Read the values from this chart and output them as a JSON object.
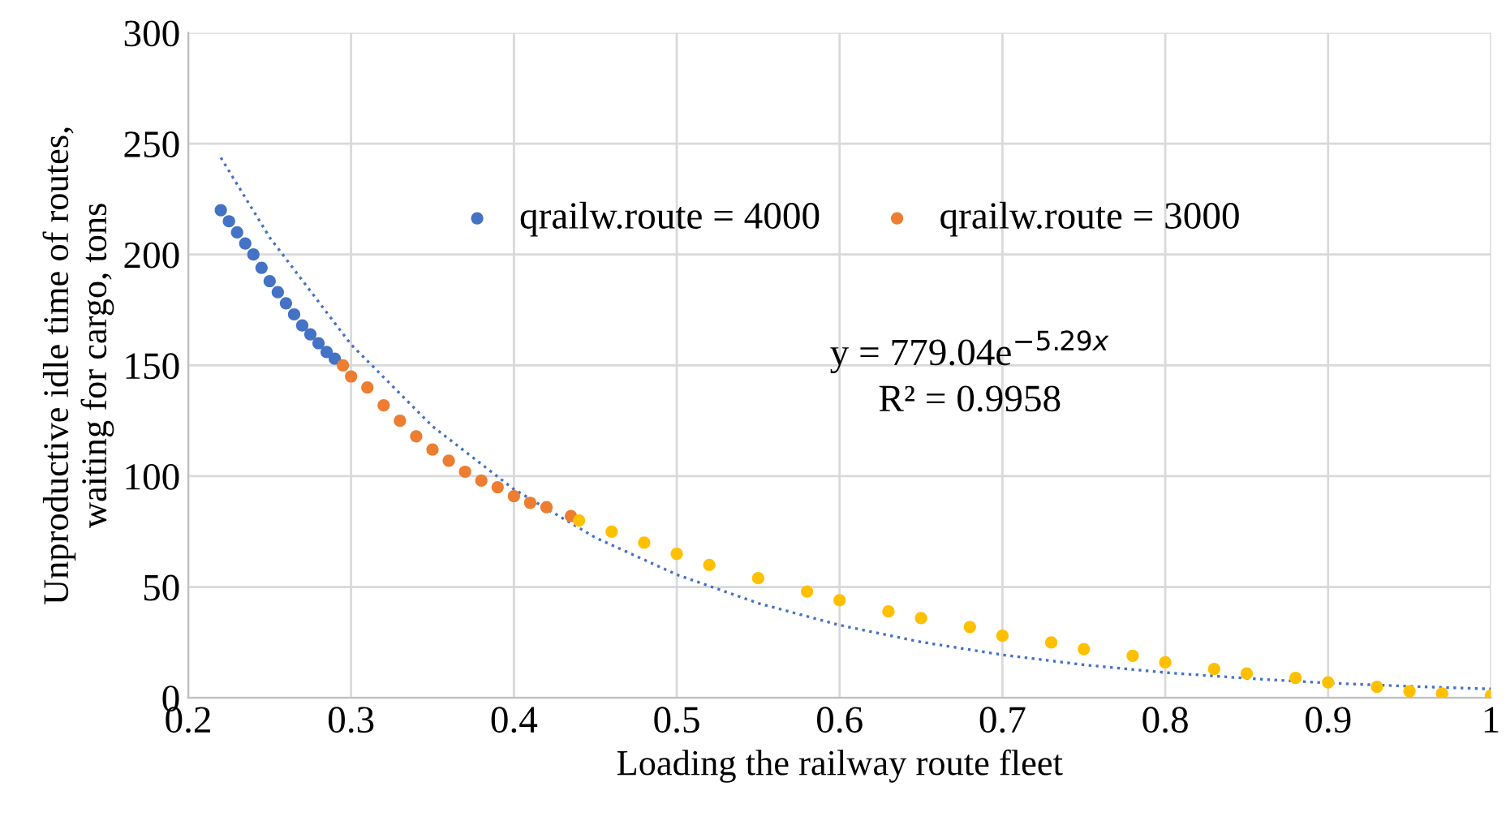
{
  "chart_data": {
    "type": "scatter",
    "xlabel": "Loading the railway route fleet",
    "ylabel": "Unproductive idle time of routes,\nwaiting for cargo, tons",
    "xlim": [
      0.2,
      1
    ],
    "xticks": [
      0.2,
      0.3,
      0.4,
      0.5,
      0.6,
      0.7,
      0.8,
      0.9,
      1
    ],
    "ylim": [
      0,
      300
    ],
    "yticks": [
      0,
      50,
      100,
      150,
      200,
      250,
      300
    ],
    "grid": true,
    "legend": "top",
    "marker": "circle",
    "annotations": [
      "y = 779.04e$^{−5.29x}$",
      "R² = 0.9958"
    ],
    "series": [
      {
        "name": "qrailw.route = 4000",
        "color": "#4472c4",
        "x": [
          0.22,
          0.225,
          0.23,
          0.235,
          0.24,
          0.245,
          0.25,
          0.255,
          0.26,
          0.265,
          0.27,
          0.275,
          0.28,
          0.285,
          0.29
        ],
        "values": [
          220,
          215,
          210,
          205,
          200,
          194,
          188,
          183,
          178,
          173,
          168,
          164,
          160,
          156,
          153
        ]
      },
      {
        "name": "qrailw.route = 3000",
        "color": "#ed7d31",
        "x": [
          0.295,
          0.3,
          0.31,
          0.32,
          0.33,
          0.34,
          0.35,
          0.36,
          0.37,
          0.38,
          0.39,
          0.4,
          0.41,
          0.42,
          0.435
        ],
        "values": [
          150,
          145,
          140,
          132,
          125,
          118,
          112,
          107,
          102,
          98,
          95,
          91,
          88,
          86,
          82
        ]
      },
      {
        "color": "#ffc000",
        "x": [
          0.44,
          0.46,
          0.48,
          0.5,
          0.52,
          0.55,
          0.58,
          0.6,
          0.63,
          0.65,
          0.68,
          0.7,
          0.73,
          0.75,
          0.78,
          0.8,
          0.83,
          0.85,
          0.88,
          0.9,
          0.93,
          0.95,
          0.97,
          1.0
        ],
        "values": [
          80,
          75,
          70,
          65,
          60,
          54,
          48,
          44,
          39,
          36,
          32,
          28,
          25,
          22,
          19,
          16,
          13,
          11,
          9,
          7,
          5,
          3,
          2,
          1
        ]
      },
      {
        "type": "line",
        "color": "#4472c4",
        "line_style": "dotted",
        "marker": "none",
        "x": [
          0.22,
          0.25,
          0.3,
          0.35,
          0.4,
          0.45,
          0.5,
          0.55,
          0.6,
          0.65,
          0.7,
          0.75,
          0.8,
          0.85,
          0.9,
          0.95,
          1.0
        ],
        "values": [
          243.7,
          207.7,
          159.4,
          122.5,
          94.1,
          72.3,
          55.6,
          42.7,
          32.8,
          25.2,
          19.4,
          14.9,
          11.4,
          8.8,
          6.7,
          5.2,
          4.0
        ]
      }
    ]
  }
}
